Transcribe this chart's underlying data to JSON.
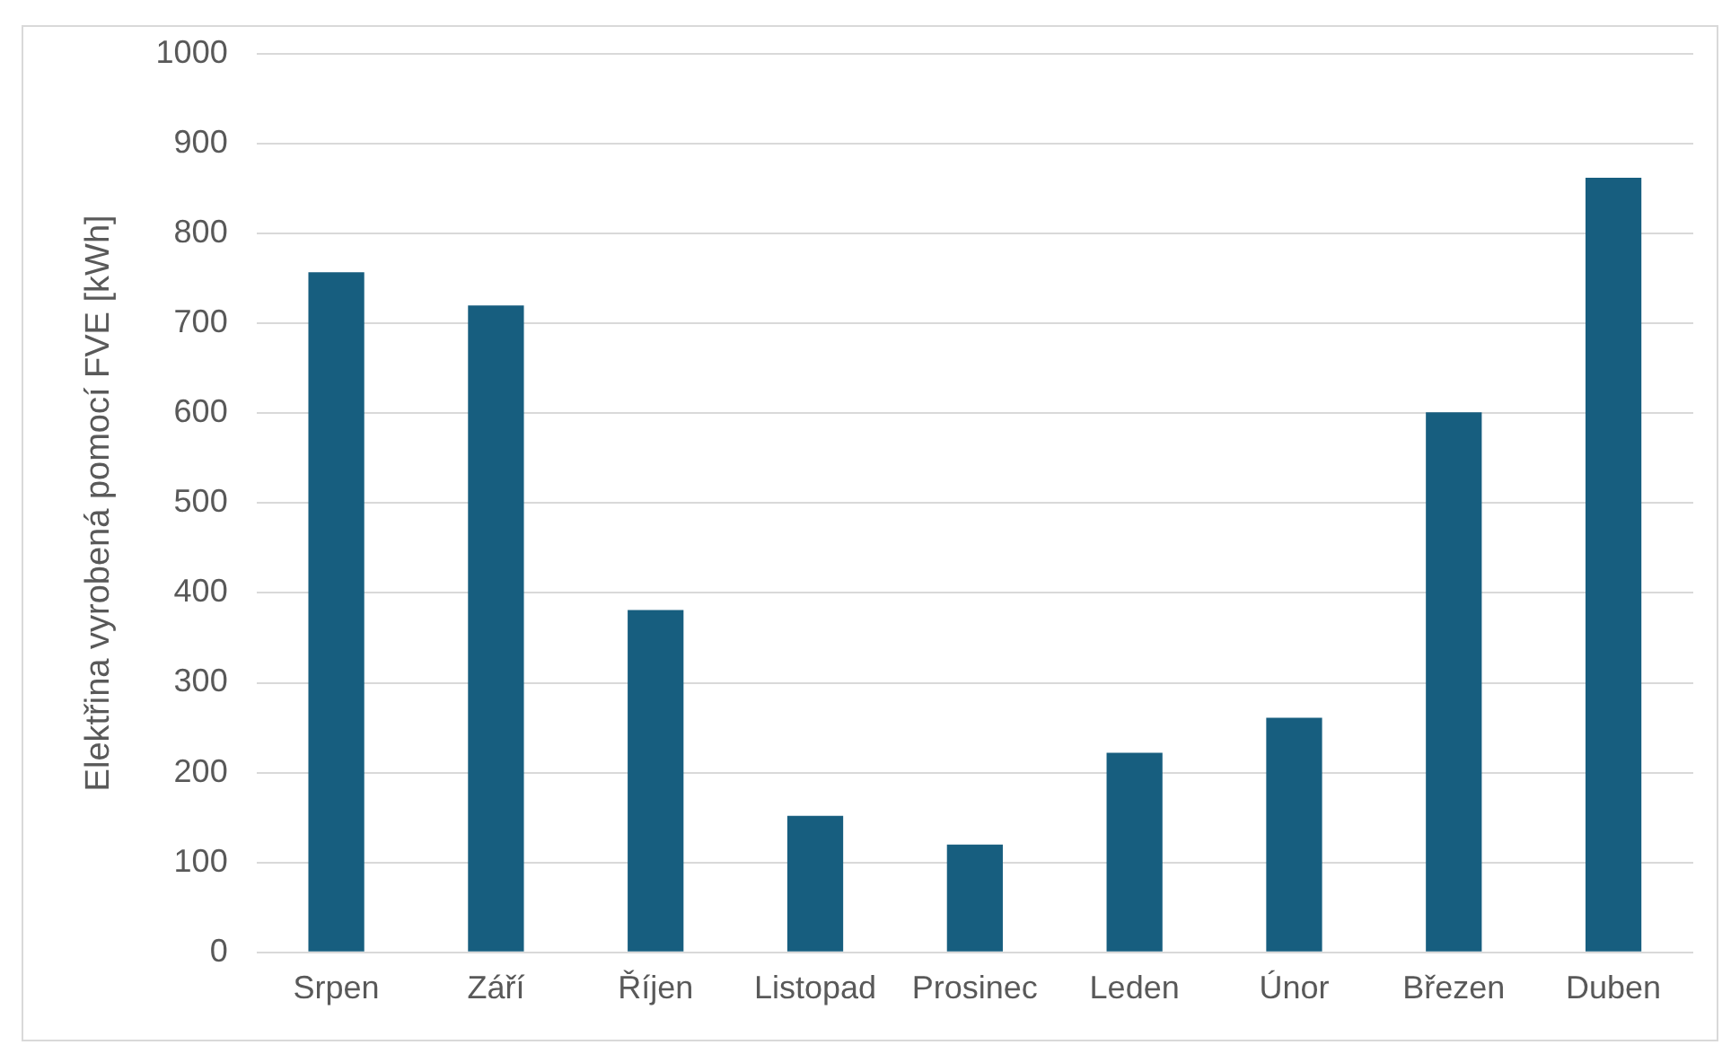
{
  "chart_data": {
    "type": "bar",
    "ylabel": "Elektřina vyrobená pomocí FVE [kWh]",
    "categories": [
      "Srpen",
      "Září",
      "Říjen",
      "Listopad",
      "Prosinec",
      "Leden",
      "Únor",
      "Březen",
      "Duben"
    ],
    "values": [
      757,
      720,
      381,
      152,
      120,
      222,
      261,
      601,
      862
    ],
    "color": "#175e7f",
    "ylim": [
      0,
      1000
    ],
    "yticks": [
      0,
      100,
      200,
      300,
      400,
      500,
      600,
      700,
      800,
      900,
      1000
    ],
    "grid": "y",
    "legend": false
  }
}
